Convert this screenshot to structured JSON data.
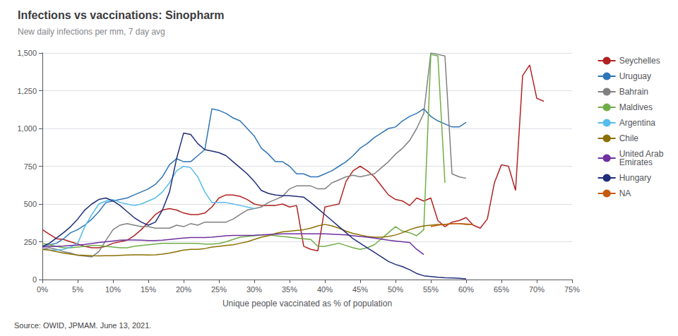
{
  "chart_data": {
    "type": "line",
    "title": "Infections vs vaccinations: Sinopharm",
    "subtitle": "New daily infections per mm, 7 day avg",
    "xlabel": "Unique people vaccinated as % of population",
    "annotations": [
      "Source: OWID, JPMAM. June 13, 2021."
    ],
    "xlim": [
      0,
      0.75
    ],
    "ylim": [
      0,
      1500
    ],
    "xticks": [
      {
        "value": 0,
        "label": "0%"
      },
      {
        "value": 0.05,
        "label": "5%"
      },
      {
        "value": 0.1,
        "label": "10%"
      },
      {
        "value": 0.15,
        "label": "15%"
      },
      {
        "value": 0.2,
        "label": "20%"
      },
      {
        "value": 0.25,
        "label": "25%"
      },
      {
        "value": 0.3,
        "label": "30%"
      },
      {
        "value": 0.35,
        "label": "35%"
      },
      {
        "value": 0.4,
        "label": "40%"
      },
      {
        "value": 0.45,
        "label": "45%"
      },
      {
        "value": 0.5,
        "label": "50%"
      },
      {
        "value": 0.55,
        "label": "55%"
      },
      {
        "value": 0.6,
        "label": "60%"
      },
      {
        "value": 0.65,
        "label": "65%"
      },
      {
        "value": 0.7,
        "label": "70%"
      },
      {
        "value": 0.75,
        "label": "75%"
      }
    ],
    "yticks": [
      0,
      250,
      500,
      750,
      {
        "value": 1000,
        "label": "1,000"
      },
      {
        "value": 1250,
        "label": "1,250"
      },
      {
        "value": 1500,
        "label": "1,500"
      }
    ],
    "grid": true,
    "legend": "right",
    "series": [
      {
        "name": "Seychelles",
        "color": "#b22222",
        "x": [
          0.0,
          0.01,
          0.02,
          0.03,
          0.04,
          0.05,
          0.06,
          0.07,
          0.08,
          0.09,
          0.1,
          0.11,
          0.12,
          0.13,
          0.14,
          0.15,
          0.16,
          0.17,
          0.18,
          0.19,
          0.2,
          0.21,
          0.22,
          0.23,
          0.24,
          0.25,
          0.26,
          0.27,
          0.28,
          0.29,
          0.3,
          0.31,
          0.32,
          0.33,
          0.34,
          0.35,
          0.36,
          0.37,
          0.38,
          0.39,
          0.4,
          0.41,
          0.42,
          0.43,
          0.44,
          0.45,
          0.46,
          0.47,
          0.48,
          0.49,
          0.5,
          0.51,
          0.52,
          0.53,
          0.54,
          0.55,
          0.56,
          0.57,
          0.58,
          0.59,
          0.6,
          0.61,
          0.62,
          0.63,
          0.64,
          0.65,
          0.66,
          0.67,
          0.68,
          0.69,
          0.7,
          0.71
        ],
        "values": [
          330,
          300,
          270,
          265,
          250,
          235,
          220,
          210,
          210,
          220,
          240,
          250,
          260,
          290,
          330,
          380,
          430,
          460,
          470,
          460,
          440,
          430,
          430,
          440,
          480,
          540,
          560,
          560,
          550,
          530,
          500,
          490,
          490,
          490,
          500,
          480,
          490,
          220,
          200,
          190,
          480,
          490,
          500,
          650,
          720,
          750,
          720,
          680,
          620,
          560,
          530,
          520,
          490,
          540,
          520,
          540,
          390,
          350,
          380,
          390,
          410,
          360,
          340,
          400,
          640,
          760,
          750,
          590,
          1350,
          1420,
          1200,
          1180
        ]
      },
      {
        "name": "Uruguay",
        "color": "#2e75b6",
        "x": [
          0.0,
          0.01,
          0.02,
          0.03,
          0.04,
          0.05,
          0.06,
          0.07,
          0.08,
          0.09,
          0.1,
          0.11,
          0.12,
          0.13,
          0.14,
          0.15,
          0.16,
          0.17,
          0.18,
          0.19,
          0.2,
          0.21,
          0.22,
          0.23,
          0.24,
          0.25,
          0.26,
          0.27,
          0.28,
          0.29,
          0.3,
          0.31,
          0.32,
          0.33,
          0.34,
          0.35,
          0.36,
          0.37,
          0.38,
          0.39,
          0.4,
          0.41,
          0.42,
          0.43,
          0.44,
          0.45,
          0.46,
          0.47,
          0.48,
          0.49,
          0.5,
          0.51,
          0.52,
          0.53,
          0.54,
          0.55,
          0.56,
          0.57,
          0.58,
          0.59,
          0.6
        ],
        "values": [
          220,
          230,
          240,
          270,
          310,
          330,
          360,
          400,
          450,
          510,
          520,
          530,
          540,
          560,
          580,
          600,
          630,
          680,
          760,
          800,
          780,
          780,
          820,
          860,
          1130,
          1120,
          1100,
          1070,
          1050,
          1000,
          950,
          870,
          830,
          780,
          780,
          750,
          700,
          700,
          680,
          680,
          700,
          720,
          750,
          780,
          820,
          870,
          900,
          940,
          970,
          1000,
          1010,
          1050,
          1080,
          1100,
          1130,
          1080,
          1050,
          1030,
          1010,
          1010,
          1040
        ]
      },
      {
        "name": "Bahrain",
        "color": "#808080",
        "x": [
          0.0,
          0.01,
          0.02,
          0.03,
          0.04,
          0.05,
          0.06,
          0.07,
          0.08,
          0.09,
          0.1,
          0.11,
          0.12,
          0.13,
          0.14,
          0.15,
          0.16,
          0.17,
          0.18,
          0.19,
          0.2,
          0.21,
          0.22,
          0.23,
          0.24,
          0.25,
          0.26,
          0.27,
          0.28,
          0.29,
          0.3,
          0.31,
          0.32,
          0.33,
          0.34,
          0.35,
          0.36,
          0.37,
          0.38,
          0.39,
          0.4,
          0.41,
          0.42,
          0.43,
          0.44,
          0.45,
          0.46,
          0.47,
          0.48,
          0.49,
          0.5,
          0.51,
          0.52,
          0.53,
          0.54,
          0.55,
          0.56,
          0.57,
          0.58,
          0.59,
          0.6
        ],
        "values": [
          200,
          210,
          200,
          185,
          175,
          160,
          155,
          150,
          185,
          260,
          330,
          360,
          370,
          360,
          350,
          350,
          340,
          340,
          340,
          360,
          350,
          370,
          360,
          380,
          380,
          380,
          380,
          400,
          430,
          460,
          470,
          480,
          510,
          530,
          550,
          600,
          620,
          620,
          620,
          600,
          600,
          640,
          660,
          680,
          690,
          680,
          690,
          700,
          740,
          780,
          830,
          870,
          920,
          1000,
          1100,
          1500,
          1490,
          1480,
          700,
          680,
          670
        ]
      },
      {
        "name": "Maldives",
        "color": "#70ad47",
        "x": [
          0.0,
          0.01,
          0.02,
          0.03,
          0.04,
          0.05,
          0.06,
          0.07,
          0.08,
          0.09,
          0.1,
          0.11,
          0.12,
          0.13,
          0.14,
          0.15,
          0.16,
          0.17,
          0.18,
          0.19,
          0.2,
          0.21,
          0.22,
          0.23,
          0.24,
          0.25,
          0.26,
          0.27,
          0.28,
          0.29,
          0.3,
          0.31,
          0.32,
          0.33,
          0.34,
          0.35,
          0.36,
          0.37,
          0.38,
          0.39,
          0.4,
          0.41,
          0.42,
          0.43,
          0.44,
          0.45,
          0.46,
          0.47,
          0.48,
          0.49,
          0.5,
          0.51,
          0.52,
          0.53,
          0.54,
          0.55,
          0.56,
          0.57
        ],
        "values": [
          240,
          230,
          220,
          210,
          210,
          215,
          220,
          225,
          225,
          220,
          215,
          210,
          210,
          220,
          225,
          230,
          235,
          240,
          240,
          240,
          240,
          240,
          238,
          235,
          235,
          238,
          250,
          265,
          280,
          285,
          290,
          295,
          295,
          290,
          285,
          280,
          275,
          270,
          265,
          220,
          220,
          230,
          240,
          225,
          210,
          200,
          210,
          230,
          270,
          310,
          350,
          320,
          310,
          290,
          330,
          1490,
          1480,
          640
        ]
      },
      {
        "name": "Argentina",
        "color": "#56bceb",
        "x": [
          0.0,
          0.01,
          0.02,
          0.03,
          0.04,
          0.05,
          0.06,
          0.07,
          0.08,
          0.09,
          0.1,
          0.11,
          0.12,
          0.13,
          0.14,
          0.15,
          0.16,
          0.17,
          0.18,
          0.19,
          0.2,
          0.21,
          0.22,
          0.23,
          0.24,
          0.25,
          0.26,
          0.27,
          0.28,
          0.29,
          0.3
        ],
        "values": [
          200,
          195,
          195,
          200,
          215,
          240,
          350,
          430,
          500,
          520,
          530,
          510,
          500,
          490,
          500,
          520,
          540,
          580,
          640,
          720,
          750,
          740,
          680,
          580,
          510,
          510,
          510,
          500,
          490,
          480,
          470
        ]
      },
      {
        "name": "Chile",
        "color": "#8b7000",
        "x": [
          0.0,
          0.01,
          0.02,
          0.03,
          0.04,
          0.05,
          0.06,
          0.07,
          0.08,
          0.09,
          0.1,
          0.11,
          0.12,
          0.13,
          0.14,
          0.15,
          0.16,
          0.17,
          0.18,
          0.19,
          0.2,
          0.21,
          0.22,
          0.23,
          0.24,
          0.25,
          0.26,
          0.27,
          0.28,
          0.29,
          0.3,
          0.31,
          0.32,
          0.33,
          0.34,
          0.35,
          0.36,
          0.37,
          0.38,
          0.39,
          0.4,
          0.41,
          0.42,
          0.43,
          0.44,
          0.45,
          0.46,
          0.47,
          0.48,
          0.49,
          0.5,
          0.51,
          0.52,
          0.53,
          0.54,
          0.55,
          0.56,
          0.57,
          0.58,
          0.59,
          0.6,
          0.61
        ],
        "values": [
          200,
          195,
          185,
          175,
          168,
          162,
          160,
          158,
          157,
          158,
          158,
          160,
          162,
          163,
          163,
          162,
          163,
          168,
          175,
          185,
          195,
          200,
          200,
          205,
          215,
          220,
          225,
          230,
          240,
          250,
          265,
          280,
          290,
          305,
          315,
          320,
          325,
          330,
          340,
          355,
          365,
          355,
          340,
          320,
          305,
          295,
          285,
          280,
          280,
          285,
          295,
          310,
          330,
          345,
          355,
          360,
          365,
          365,
          370,
          370,
          365,
          365
        ]
      },
      {
        "name": "United Arab\nEmirates",
        "color": "#7030a0",
        "x": [
          0.0,
          0.01,
          0.02,
          0.03,
          0.04,
          0.05,
          0.06,
          0.07,
          0.08,
          0.09,
          0.1,
          0.11,
          0.12,
          0.13,
          0.14,
          0.15,
          0.16,
          0.17,
          0.18,
          0.19,
          0.2,
          0.21,
          0.22,
          0.23,
          0.24,
          0.25,
          0.26,
          0.27,
          0.28,
          0.29,
          0.3,
          0.31,
          0.32,
          0.33,
          0.34,
          0.35,
          0.36,
          0.37,
          0.38,
          0.39,
          0.4,
          0.41,
          0.42,
          0.43,
          0.44,
          0.45,
          0.46,
          0.47,
          0.48,
          0.49,
          0.5,
          0.51,
          0.52,
          0.53,
          0.54
        ],
        "values": [
          215,
          218,
          220,
          222,
          225,
          228,
          232,
          238,
          245,
          250,
          255,
          260,
          262,
          262,
          260,
          258,
          258,
          260,
          265,
          270,
          275,
          278,
          278,
          278,
          280,
          285,
          290,
          292,
          292,
          292,
          293,
          295,
          298,
          300,
          302,
          302,
          302,
          302,
          302,
          302,
          302,
          300,
          298,
          295,
          290,
          285,
          280,
          275,
          268,
          260,
          255,
          250,
          245,
          200,
          165
        ]
      },
      {
        "name": "Hungary",
        "color": "#1f2d7a",
        "x": [
          0.0,
          0.01,
          0.02,
          0.03,
          0.04,
          0.05,
          0.06,
          0.07,
          0.08,
          0.09,
          0.1,
          0.11,
          0.12,
          0.13,
          0.14,
          0.15,
          0.16,
          0.17,
          0.18,
          0.19,
          0.2,
          0.21,
          0.22,
          0.23,
          0.24,
          0.25,
          0.26,
          0.27,
          0.28,
          0.29,
          0.3,
          0.31,
          0.32,
          0.33,
          0.34,
          0.35,
          0.36,
          0.37,
          0.38,
          0.39,
          0.4,
          0.41,
          0.42,
          0.43,
          0.44,
          0.45,
          0.46,
          0.47,
          0.48,
          0.49,
          0.5,
          0.51,
          0.52,
          0.53,
          0.54,
          0.55,
          0.56,
          0.57,
          0.58,
          0.59,
          0.6
        ],
        "values": [
          220,
          240,
          275,
          310,
          350,
          400,
          460,
          500,
          530,
          540,
          520,
          490,
          450,
          410,
          380,
          360,
          380,
          460,
          580,
          800,
          970,
          960,
          900,
          860,
          850,
          840,
          820,
          780,
          740,
          700,
          650,
          590,
          570,
          560,
          555,
          555,
          550,
          545,
          510,
          470,
          430,
          390,
          350,
          310,
          270,
          240,
          210,
          180,
          150,
          120,
          100,
          85,
          65,
          40,
          25,
          20,
          15,
          12,
          10,
          8,
          5
        ]
      },
      {
        "name": "NA",
        "color": "#c55a11",
        "x": [
          0.55,
          0.56,
          0.57,
          0.58,
          0.59,
          0.6,
          0.61
        ],
        "values": [
          350,
          360,
          365,
          370,
          370,
          368,
          365
        ]
      }
    ]
  }
}
